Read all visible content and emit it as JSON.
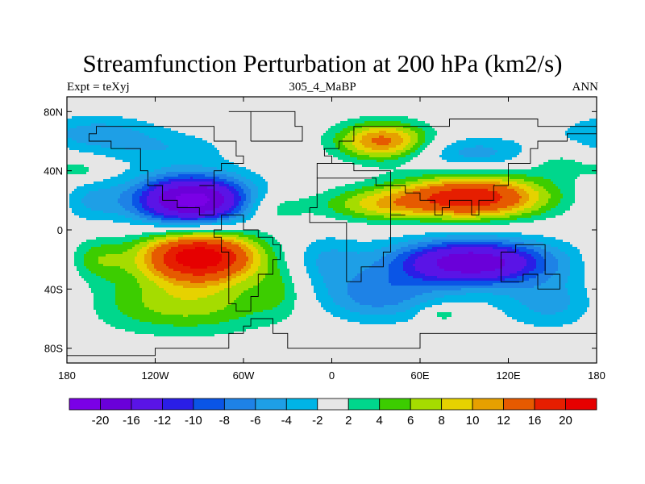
{
  "chart_data": {
    "type": "heatmap",
    "projection": "cylindrical-equidistant",
    "title": "Streamfunction Perturbation at 200 hPa (km2/s)",
    "subtitle_left": "Expt = teXyj",
    "subtitle_center": "305_4_MaBP",
    "subtitle_right": "ANN",
    "xlim": [
      -180,
      180
    ],
    "ylim": [
      -90,
      90
    ],
    "x_ticks": [
      {
        "value": -180,
        "label": "180"
      },
      {
        "value": -120,
        "label": "120W"
      },
      {
        "value": -60,
        "label": "60W"
      },
      {
        "value": 0,
        "label": "0"
      },
      {
        "value": 60,
        "label": "60E"
      },
      {
        "value": 120,
        "label": "120E"
      },
      {
        "value": 180,
        "label": "180"
      }
    ],
    "y_ticks": [
      {
        "value": 80,
        "label": "80N"
      },
      {
        "value": 40,
        "label": "40N"
      },
      {
        "value": 0,
        "label": "0"
      },
      {
        "value": -40,
        "label": "40S"
      },
      {
        "value": -80,
        "label": "80S"
      }
    ],
    "contour_levels": [
      -20,
      -16,
      -12,
      -10,
      -8,
      -6,
      -4,
      -2,
      2,
      4,
      6,
      8,
      10,
      12,
      16,
      20
    ],
    "level_labels": [
      "-20",
      "-16",
      "-12",
      "-10",
      "-8",
      "-6",
      "-4",
      "-2",
      "2",
      "4",
      "6",
      "8",
      "10",
      "12",
      "16",
      "20"
    ],
    "colors": [
      "#7a00e6",
      "#6a00d9",
      "#5a14e6",
      "#2a1ee6",
      "#0a55e6",
      "#1e82e6",
      "#1e9fe6",
      "#00b4e6",
      "#e6e6e6",
      "#00d78c",
      "#3ccd00",
      "#a5dc00",
      "#e6d200",
      "#e6a000",
      "#e65a00",
      "#e61e00",
      "#e60000"
    ],
    "features": [
      {
        "lon": -95,
        "lat": 20,
        "amp": -22,
        "slon": 28,
        "slat": 12
      },
      {
        "lon": -160,
        "lat": 65,
        "amp": -5,
        "slon": 30,
        "slat": 9
      },
      {
        "lon": -110,
        "lat": 55,
        "amp": -3,
        "slon": 30,
        "slat": 8
      },
      {
        "lon": -165,
        "lat": 20,
        "amp": -4,
        "slon": 15,
        "slat": 10
      },
      {
        "lon": -90,
        "lat": -18,
        "amp": 23,
        "slon": 28,
        "slat": 12
      },
      {
        "lon": -100,
        "lat": -50,
        "amp": 7,
        "slon": 45,
        "slat": 14
      },
      {
        "lon": -160,
        "lat": -20,
        "amp": 5,
        "slon": 14,
        "slat": 10
      },
      {
        "lon": -40,
        "lat": 15,
        "amp": 4,
        "slon": 15,
        "slat": 8
      },
      {
        "lon": -35,
        "lat": -40,
        "amp": 3,
        "slon": 12,
        "slat": 12
      },
      {
        "lon": 35,
        "lat": 60,
        "amp": 13,
        "slon": 22,
        "slat": 9
      },
      {
        "lon": 30,
        "lat": 17,
        "amp": 7,
        "slon": 28,
        "slat": 8
      },
      {
        "lon": 95,
        "lat": 22,
        "amp": 19,
        "slon": 35,
        "slat": 10
      },
      {
        "lon": 95,
        "lat": -22,
        "amp": -19,
        "slon": 38,
        "slat": 11
      },
      {
        "lon": 30,
        "lat": -45,
        "amp": -7,
        "slon": 30,
        "slat": 12
      },
      {
        "lon": -5,
        "lat": -20,
        "amp": -4,
        "slon": 18,
        "slat": 12
      },
      {
        "lon": 95,
        "lat": 52,
        "amp": -5,
        "slon": 30,
        "slat": 8
      },
      {
        "lon": 150,
        "lat": -50,
        "amp": -5,
        "slon": 25,
        "slat": 12
      },
      {
        "lon": 75,
        "lat": -57,
        "amp": 4,
        "slon": 10,
        "slat": 4
      },
      {
        "lon": 155,
        "lat": 45,
        "amp": 3,
        "slon": 18,
        "slat": 8
      },
      {
        "lon": -170,
        "lat": 40,
        "amp": 3,
        "slon": 10,
        "slat": 5
      }
    ],
    "coastlines": [
      [
        [
          -180,
          -83
        ],
        [
          -150,
          -83
        ],
        [
          -120,
          -80
        ],
        [
          -90,
          -78
        ],
        [
          -70,
          -70
        ],
        [
          -62,
          -64
        ],
        [
          -55,
          -60
        ],
        [
          -40,
          -72
        ],
        [
          -30,
          -78
        ],
        [
          0,
          -78
        ],
        [
          60,
          -72
        ],
        [
          120,
          -68
        ],
        [
          150,
          -70
        ],
        [
          180,
          -80
        ]
      ],
      [
        [
          -70,
          10
        ],
        [
          -75,
          0
        ],
        [
          -80,
          -5
        ],
        [
          -75,
          -15
        ],
        [
          -72,
          -35
        ],
        [
          -68,
          -50
        ],
        [
          -65,
          -55
        ],
        [
          -55,
          -45
        ],
        [
          -48,
          -28
        ],
        [
          -40,
          -20
        ],
        [
          -35,
          -8
        ],
        [
          -40,
          -3
        ],
        [
          -50,
          2
        ],
        [
          -60,
          10
        ],
        [
          -70,
          10
        ]
      ],
      [
        [
          -80,
          8
        ],
        [
          -90,
          15
        ],
        [
          -105,
          20
        ],
        [
          -115,
          30
        ],
        [
          -125,
          40
        ],
        [
          -130,
          55
        ],
        [
          -150,
          60
        ],
        [
          -165,
          65
        ],
        [
          -160,
          72
        ],
        [
          -130,
          70
        ],
        [
          -95,
          72
        ],
        [
          -80,
          60
        ],
        [
          -65,
          50
        ],
        [
          -60,
          46
        ],
        [
          -75,
          38
        ],
        [
          -80,
          30
        ],
        [
          -90,
          28
        ],
        [
          -82,
          22
        ],
        [
          -80,
          8
        ]
      ],
      [
        [
          -17,
          15
        ],
        [
          -10,
          35
        ],
        [
          0,
          37
        ],
        [
          10,
          35
        ],
        [
          32,
          31
        ],
        [
          42,
          12
        ],
        [
          51,
          11
        ],
        [
          40,
          -15
        ],
        [
          35,
          -25
        ],
        [
          20,
          -35
        ],
        [
          12,
          -18
        ],
        [
          9,
          5
        ],
        [
          -5,
          5
        ],
        [
          -17,
          15
        ]
      ],
      [
        [
          -10,
          36
        ],
        [
          -9,
          43
        ],
        [
          0,
          48
        ],
        [
          -5,
          54
        ],
        [
          5,
          58
        ],
        [
          15,
          68
        ],
        [
          30,
          71
        ],
        [
          60,
          70
        ],
        [
          80,
          73
        ],
        [
          110,
          76
        ],
        [
          140,
          72
        ],
        [
          170,
          70
        ],
        [
          180,
          65
        ],
        [
          160,
          60
        ],
        [
          142,
          55
        ],
        [
          135,
          45
        ],
        [
          122,
          40
        ],
        [
          122,
          30
        ],
        [
          108,
          20
        ],
        [
          100,
          10
        ],
        [
          95,
          18
        ],
        [
          88,
          22
        ],
        [
          80,
          15
        ],
        [
          77,
          8
        ],
        [
          72,
          20
        ],
        [
          60,
          25
        ],
        [
          55,
          25
        ],
        [
          50,
          30
        ],
        [
          40,
          40
        ],
        [
          30,
          40
        ],
        [
          26,
          40
        ],
        [
          20,
          40
        ],
        [
          15,
          44
        ],
        [
          10,
          44
        ],
        [
          3,
          43
        ],
        [
          -10,
          36
        ]
      ],
      [
        [
          114,
          -22
        ],
        [
          114,
          -34
        ],
        [
          130,
          -32
        ],
        [
          140,
          -38
        ],
        [
          150,
          -38
        ],
        [
          153,
          -28
        ],
        [
          143,
          -12
        ],
        [
          135,
          -12
        ],
        [
          125,
          -14
        ],
        [
          114,
          -22
        ]
      ],
      [
        [
          -55,
          60
        ],
        [
          -45,
          60
        ],
        [
          -20,
          70
        ],
        [
          -25,
          80
        ],
        [
          -60,
          82
        ],
        [
          -70,
          78
        ],
        [
          -55,
          60
        ]
      ]
    ]
  }
}
